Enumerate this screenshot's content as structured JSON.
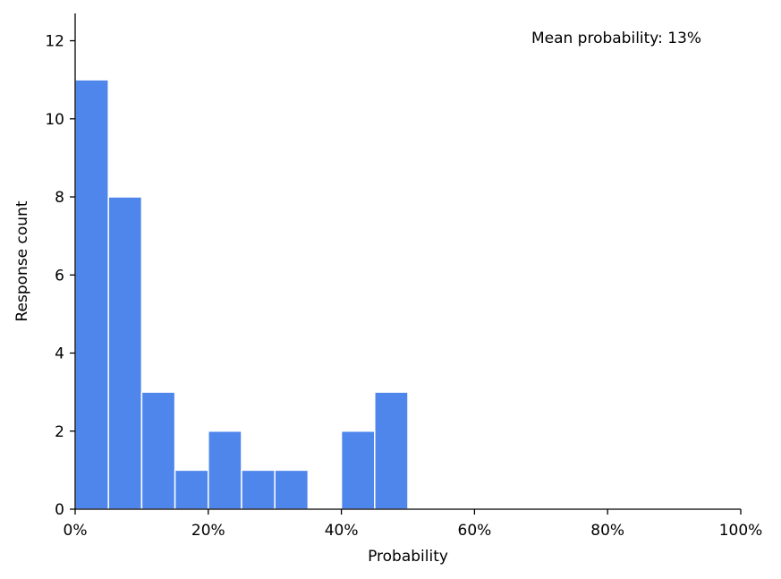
{
  "chart_data": {
    "type": "bar",
    "title": "",
    "xlabel": "Probability",
    "ylabel": "Response count",
    "annotation": "Mean probability: 13%",
    "bin_width": 5,
    "bin_starts": [
      0,
      5,
      10,
      15,
      20,
      25,
      30,
      35,
      40,
      45,
      50,
      55,
      60,
      65,
      70,
      75,
      80,
      85,
      90,
      95
    ],
    "values": [
      11,
      8,
      3,
      1,
      2,
      1,
      1,
      0,
      2,
      3,
      0,
      0,
      0,
      0,
      0,
      0,
      0,
      0,
      0,
      0
    ],
    "xlim": [
      0,
      100
    ],
    "ylim": [
      0,
      12.7
    ],
    "x_ticks": [
      0,
      20,
      40,
      60,
      80,
      100
    ],
    "x_tick_labels": [
      "0%",
      "20%",
      "40%",
      "60%",
      "80%",
      "100%"
    ],
    "y_ticks": [
      0,
      2,
      4,
      6,
      8,
      10,
      12
    ],
    "y_tick_labels": [
      "0",
      "2",
      "4",
      "6",
      "8",
      "10",
      "12"
    ],
    "grid": false,
    "bar_color": "#4f86ec",
    "bar_edge_color": "#ffffff"
  }
}
